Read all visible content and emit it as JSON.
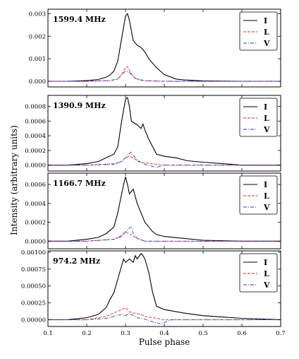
{
  "figure": {
    "ylabel": "Intensity (arbitrary units)",
    "xlabel": "Pulse phase"
  },
  "chart_data": [
    {
      "type": "line",
      "annotation": "1599.4 MHz",
      "xlim": [
        0.1,
        0.7
      ],
      "ylim": [
        -0.00025,
        0.0032
      ],
      "yticks": [
        0.0,
        0.001,
        0.002,
        0.003
      ],
      "ytick_labels": [
        "0.000",
        "0.001",
        "0.002",
        "0.003"
      ],
      "legend_position": "top-right",
      "series": [
        {
          "name": "I",
          "color": "#000000",
          "dash": "solid",
          "x": [
            0.1,
            0.15,
            0.2,
            0.23,
            0.25,
            0.26,
            0.27,
            0.28,
            0.29,
            0.3,
            0.305,
            0.31,
            0.32,
            0.33,
            0.34,
            0.35,
            0.36,
            0.38,
            0.4,
            0.43,
            0.45,
            0.5,
            0.6,
            0.7
          ],
          "y": [
            0.0,
            0.0,
            3e-05,
            8e-05,
            0.00018,
            0.00028,
            0.00045,
            0.0009,
            0.0019,
            0.0029,
            0.003,
            0.0027,
            0.0018,
            0.0016,
            0.0015,
            0.0013,
            0.001,
            0.0006,
            0.0003,
            0.0001,
            6e-05,
            2e-05,
            0.0,
            0.0
          ]
        },
        {
          "name": "L",
          "color": "#ee2222",
          "dash": "dashed",
          "x": [
            0.1,
            0.2,
            0.26,
            0.28,
            0.29,
            0.3,
            0.305,
            0.31,
            0.32,
            0.33,
            0.35,
            0.4,
            0.5,
            0.7
          ],
          "y": [
            0.0,
            0.0,
            3e-05,
            0.0001,
            0.0003,
            0.0006,
            0.00065,
            0.0005,
            0.0002,
            0.0001,
            3e-05,
            0.0,
            0.0,
            0.0
          ]
        },
        {
          "name": "V",
          "color": "#1f35d6",
          "dash": "dashdot",
          "x": [
            0.1,
            0.2,
            0.26,
            0.28,
            0.29,
            0.3,
            0.31,
            0.32,
            0.33,
            0.35,
            0.4,
            0.5,
            0.7
          ],
          "y": [
            0.0,
            0.0,
            3e-05,
            0.0001,
            0.0003,
            0.00045,
            0.0004,
            0.0002,
            8e-05,
            2e-05,
            0.0,
            0.0,
            0.0
          ]
        }
      ]
    },
    {
      "type": "line",
      "annotation": "1390.9 MHz",
      "xlim": [
        0.1,
        0.7
      ],
      "ylim": [
        -8e-05,
        0.00095
      ],
      "yticks": [
        0.0,
        0.0002,
        0.0004,
        0.0006,
        0.0008
      ],
      "ytick_labels": [
        "0.0000",
        "0.0002",
        "0.0004",
        "0.0006",
        "0.0008"
      ],
      "legend_position": "top-right",
      "series": [
        {
          "name": "I",
          "color": "#000000",
          "dash": "solid",
          "x": [
            0.1,
            0.15,
            0.2,
            0.23,
            0.25,
            0.27,
            0.28,
            0.29,
            0.3,
            0.305,
            0.31,
            0.315,
            0.32,
            0.33,
            0.34,
            0.345,
            0.35,
            0.36,
            0.37,
            0.38,
            0.4,
            0.43,
            0.46,
            0.5,
            0.55,
            0.6,
            0.7
          ],
          "y": [
            0.0,
            0.0,
            2e-05,
            5e-05,
            0.0001,
            0.00015,
            0.00025,
            0.0006,
            0.0009,
            0.00092,
            0.0008,
            0.0006,
            0.00058,
            0.00055,
            0.0005,
            0.00056,
            0.00048,
            0.00035,
            0.00025,
            0.00015,
            0.00012,
            0.0001,
            6e-05,
            4e-05,
            2e-05,
            0.0,
            0.0
          ]
        },
        {
          "name": "L",
          "color": "#ee2222",
          "dash": "dashed",
          "x": [
            0.1,
            0.2,
            0.27,
            0.29,
            0.3,
            0.31,
            0.32,
            0.33,
            0.35,
            0.4,
            0.5,
            0.7
          ],
          "y": [
            0.0,
            0.0,
            2e-05,
            5e-05,
            0.0001,
            0.00012,
            0.0001,
            6e-05,
            3e-05,
            0.0,
            0.0,
            0.0
          ]
        },
        {
          "name": "V",
          "color": "#1f35d6",
          "dash": "dashdot",
          "x": [
            0.1,
            0.2,
            0.27,
            0.29,
            0.3,
            0.31,
            0.315,
            0.32,
            0.33,
            0.35,
            0.38,
            0.4,
            0.5,
            0.7
          ],
          "y": [
            0.0,
            0.0,
            1e-05,
            5e-05,
            0.0001,
            0.00016,
            0.00018,
            0.00014,
            6e-05,
            1e-05,
            -3e-05,
            0.0,
            0.0,
            0.0
          ]
        }
      ]
    },
    {
      "type": "line",
      "annotation": "1166.7 MHz",
      "xlim": [
        0.1,
        0.7
      ],
      "ylim": [
        -8e-05,
        0.00072
      ],
      "yticks": [
        0.0,
        0.0002,
        0.0004,
        0.0006
      ],
      "ytick_labels": [
        "0.0000",
        "0.0002",
        "0.0004",
        "0.0006"
      ],
      "legend_position": "top-right",
      "series": [
        {
          "name": "I",
          "color": "#000000",
          "dash": "solid",
          "x": [
            0.1,
            0.15,
            0.2,
            0.23,
            0.25,
            0.27,
            0.28,
            0.29,
            0.295,
            0.3,
            0.305,
            0.31,
            0.32,
            0.33,
            0.34,
            0.35,
            0.36,
            0.37,
            0.38,
            0.4,
            0.45,
            0.5,
            0.6,
            0.7
          ],
          "y": [
            0.0,
            0.0,
            2e-05,
            4e-05,
            8e-05,
            0.00015,
            0.0003,
            0.0005,
            0.0006,
            0.00068,
            0.0006,
            0.0005,
            0.00055,
            0.0004,
            0.0003,
            0.0002,
            0.00015,
            0.0001,
            7e-05,
            5e-05,
            3e-05,
            1e-05,
            0.0,
            0.0
          ]
        },
        {
          "name": "L",
          "color": "#ee2222",
          "dash": "dashed",
          "x": [
            0.1,
            0.2,
            0.27,
            0.29,
            0.3,
            0.31,
            0.32,
            0.33,
            0.35,
            0.4,
            0.5,
            0.7
          ],
          "y": [
            0.0,
            0.0,
            2e-05,
            6e-05,
            0.0001,
            8e-05,
            5e-05,
            3e-05,
            0.0,
            0.0,
            0.0,
            0.0
          ]
        },
        {
          "name": "V",
          "color": "#1f35d6",
          "dash": "dashdot",
          "x": [
            0.1,
            0.2,
            0.27,
            0.29,
            0.3,
            0.31,
            0.315,
            0.32,
            0.33,
            0.35,
            0.4,
            0.5,
            0.7
          ],
          "y": [
            0.0,
            0.0,
            2e-05,
            5e-05,
            0.0001,
            0.00014,
            0.00015,
            8e-05,
            3e-05,
            0.0,
            0.0,
            0.0,
            0.0
          ]
        }
      ]
    },
    {
      "type": "line",
      "annotation": "974.2 MHz",
      "xlim": [
        0.1,
        0.7
      ],
      "ylim": [
        -0.0001,
        0.00102
      ],
      "yticks": [
        0.0,
        0.00025,
        0.0005,
        0.00075,
        0.001
      ],
      "ytick_labels": [
        "0.00000",
        "0.00025",
        "0.00050",
        "0.00075",
        "0.00100"
      ],
      "xticks": [
        0.1,
        0.2,
        0.3,
        0.4,
        0.5,
        0.6,
        0.7
      ],
      "xtick_labels": [
        "0.1",
        "0.2",
        "0.3",
        "0.4",
        "0.5",
        "0.6",
        "0.7"
      ],
      "legend_position": "top-right",
      "series": [
        {
          "name": "I",
          "color": "#000000",
          "dash": "solid",
          "x": [
            0.1,
            0.15,
            0.2,
            0.23,
            0.25,
            0.26,
            0.27,
            0.28,
            0.29,
            0.295,
            0.3,
            0.31,
            0.32,
            0.325,
            0.33,
            0.34,
            0.345,
            0.35,
            0.36,
            0.37,
            0.38,
            0.4,
            0.45,
            0.5,
            0.55,
            0.6,
            0.7
          ],
          "y": [
            0.0,
            0.0,
            3e-05,
            8e-05,
            0.00018,
            0.0003,
            0.0004,
            0.0006,
            0.0008,
            0.0009,
            0.00085,
            0.0009,
            0.00085,
            0.00095,
            0.0009,
            0.00098,
            0.00095,
            0.0009,
            0.0007,
            0.0004,
            0.0002,
            0.00015,
            0.0001,
            6e-05,
            4e-05,
            2e-05,
            0.0
          ]
        },
        {
          "name": "L",
          "color": "#ee2222",
          "dash": "dashed",
          "x": [
            0.1,
            0.2,
            0.25,
            0.27,
            0.29,
            0.3,
            0.31,
            0.32,
            0.34,
            0.35,
            0.37,
            0.4,
            0.5,
            0.7
          ],
          "y": [
            0.0,
            0.0,
            5e-05,
            0.0001,
            0.00015,
            0.00018,
            0.00012,
            0.0001,
            8e-05,
            5e-05,
            3e-05,
            0.0,
            0.0,
            0.0
          ]
        },
        {
          "name": "V",
          "color": "#1f35d6",
          "dash": "dashdot",
          "x": [
            0.1,
            0.2,
            0.25,
            0.27,
            0.29,
            0.3,
            0.31,
            0.32,
            0.33,
            0.35,
            0.37,
            0.39,
            0.4,
            0.42,
            0.5,
            0.7
          ],
          "y": [
            0.0,
            0.0,
            2e-05,
            5e-05,
            8e-05,
            6e-05,
            0.0001,
            6e-05,
            3e-05,
            1e-05,
            -3e-05,
            -6e-05,
            -4e-05,
            0.0,
            0.0,
            0.0
          ]
        }
      ]
    }
  ]
}
